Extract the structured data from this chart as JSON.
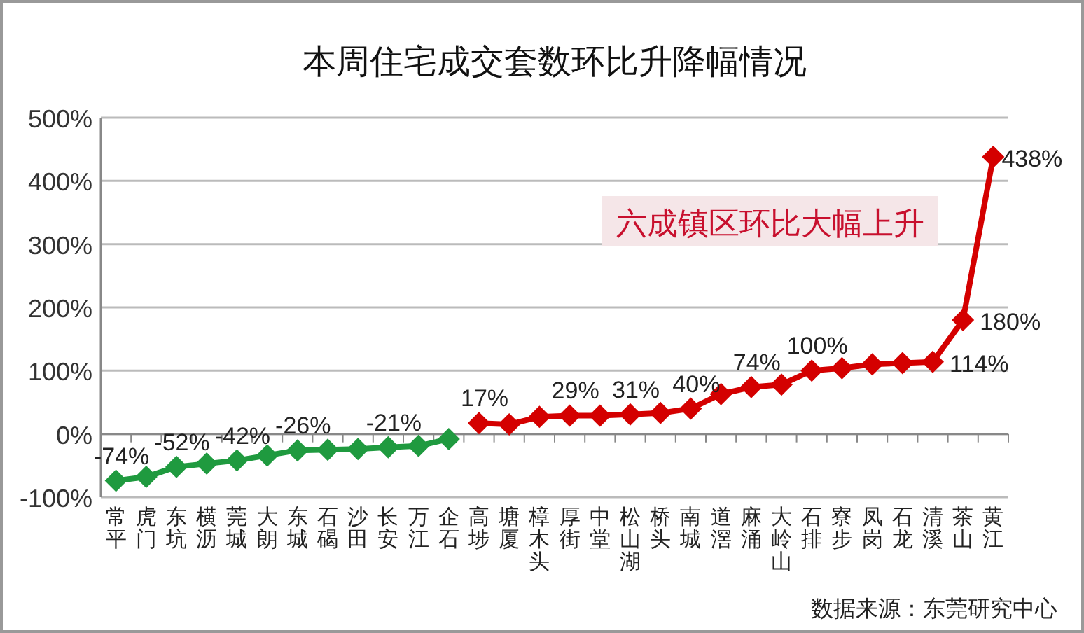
{
  "chart_data": {
    "type": "line",
    "title": "本周住宅成交套数环比升降幅情况",
    "categories": [
      "常平",
      "虎门",
      "东坑",
      "横沥",
      "莞城",
      "大朗",
      "东城",
      "石碣",
      "沙田",
      "长安",
      "万江",
      "企石",
      "高埗",
      "塘厦",
      "樟木头",
      "厚街",
      "中堂",
      "松山湖",
      "桥头",
      "南城",
      "道滘",
      "麻涌",
      "大岭山",
      "石排",
      "寮步",
      "凤岗",
      "石龙",
      "清溪",
      "茶山",
      "黄江"
    ],
    "series": [
      {
        "color": "#1f9a3f",
        "values": [
          -74,
          -68,
          -52,
          -47,
          -42,
          -34,
          -26,
          -25,
          -24,
          -21,
          -19,
          -8,
          null,
          null,
          null,
          null,
          null,
          null,
          null,
          null,
          null,
          null,
          null,
          null,
          null,
          null,
          null,
          null,
          null,
          null
        ],
        "value_labels": [
          "-74%",
          null,
          "-52%",
          null,
          "-42%",
          null,
          "-26%",
          null,
          null,
          "-21%",
          null,
          null,
          null,
          null,
          null,
          null,
          null,
          null,
          null,
          null,
          null,
          null,
          null,
          null,
          null,
          null,
          null,
          null,
          null,
          null
        ]
      },
      {
        "color": "#d40000",
        "values": [
          null,
          null,
          null,
          null,
          null,
          null,
          null,
          null,
          null,
          null,
          null,
          null,
          17,
          15,
          27,
          29,
          29,
          31,
          33,
          40,
          63,
          74,
          78,
          100,
          104,
          110,
          112,
          114,
          180,
          438
        ],
        "value_labels": [
          null,
          null,
          null,
          null,
          null,
          null,
          null,
          null,
          null,
          null,
          null,
          null,
          "17%",
          null,
          null,
          "29%",
          null,
          "31%",
          null,
          "40%",
          null,
          "74%",
          null,
          "100%",
          null,
          null,
          null,
          "114%",
          "180%",
          "438%"
        ]
      }
    ],
    "ylim": [
      -100,
      500
    ],
    "yticks": [
      {
        "value": -100,
        "label": "-100%"
      },
      {
        "value": 0,
        "label": "0%"
      },
      {
        "value": 100,
        "label": "100%"
      },
      {
        "value": 200,
        "label": "200%"
      },
      {
        "value": 300,
        "label": "300%"
      },
      {
        "value": 400,
        "label": "400%"
      },
      {
        "value": 500,
        "label": "500%"
      }
    ],
    "grid": "y",
    "marker": "diamond",
    "line_style": "solid",
    "annotations": [
      "六成镇区环比大幅上升",
      "数据来源：东莞研究中心"
    ]
  }
}
